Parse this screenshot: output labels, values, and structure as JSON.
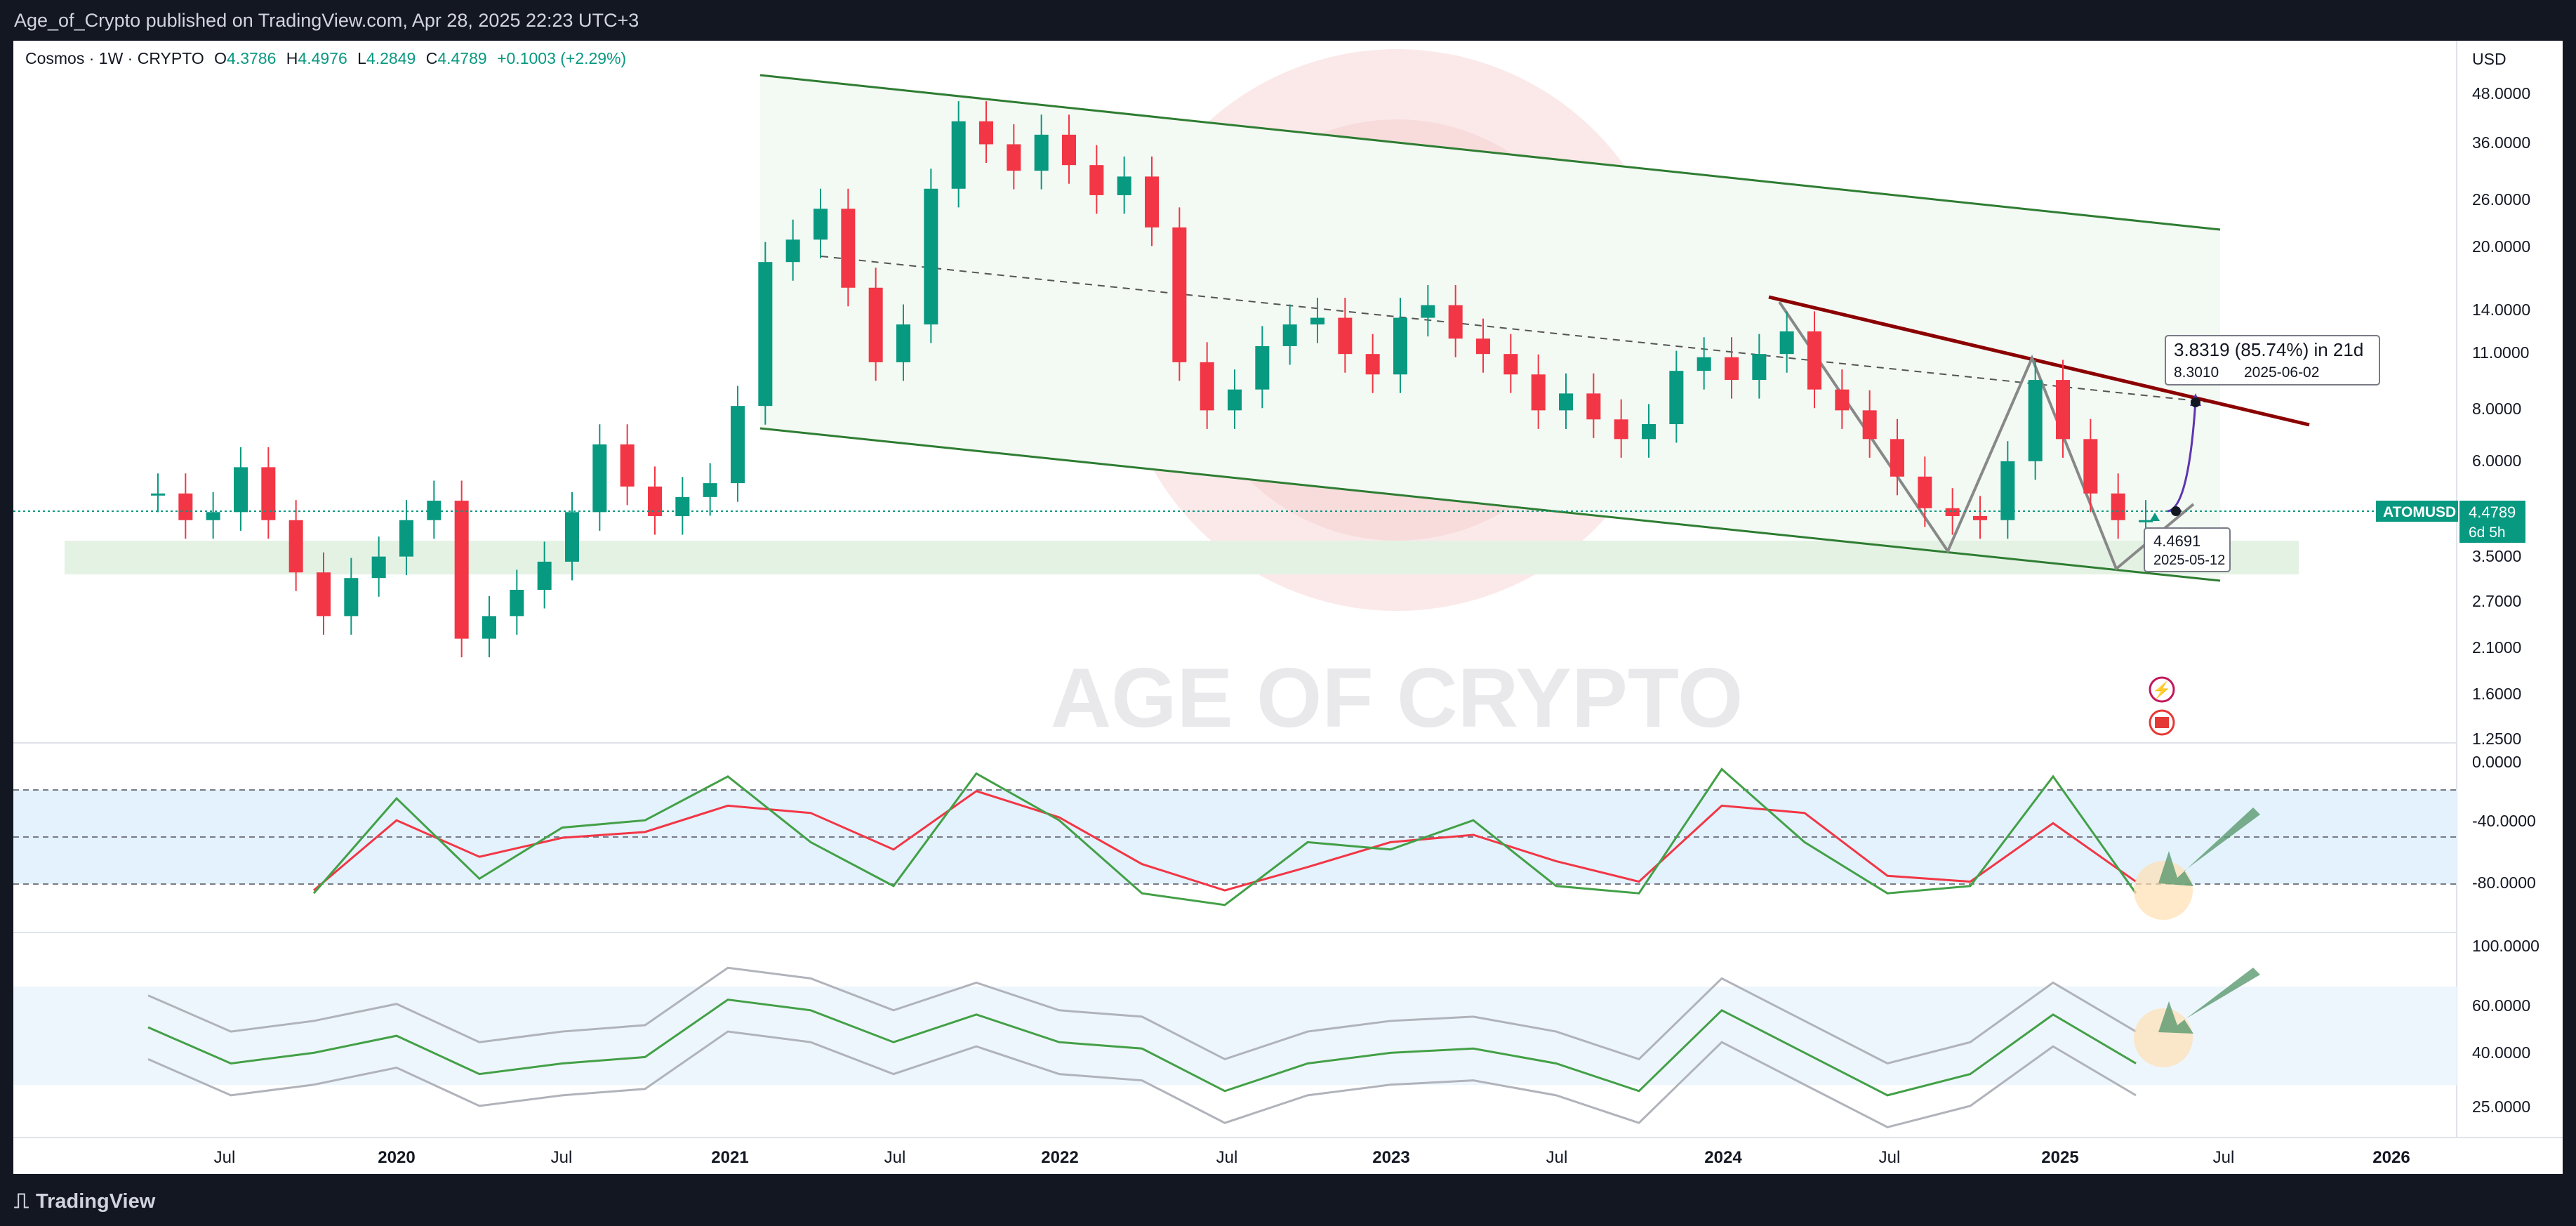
{
  "header": {
    "published": "Age_of_Crypto published on TradingView.com, Apr 28, 2025 22:23 UTC+3"
  },
  "footer": {
    "brand": "TradingView"
  },
  "watermark": "AGE OF CRYPTO",
  "legend": {
    "symbol": "Cosmos · 1W · CRYPTO",
    "open": "4.3786",
    "high": "4.4976",
    "low": "4.2849",
    "close": "4.4789",
    "change": "+0.1003 (+2.29%)"
  },
  "currency": "USD",
  "price_tag": {
    "ticker": "ATOMUSD",
    "price": "4.4789",
    "countdown": "6d 5h"
  },
  "annotations": {
    "target_box": {
      "line1": "3.8319 (85.74%) in 21d",
      "price": "8.3010",
      "date": "2025-06-02"
    },
    "start_box": {
      "price": "4.4691",
      "date": "2025-05-12"
    }
  },
  "colors": {
    "up": "#089981",
    "down": "#f23645",
    "channel": "#2e7d32",
    "resistance": "#8b0000",
    "rsi_signal": "#f23645",
    "rsi_line": "#43a047",
    "support_zone": "#c8e6c9"
  },
  "chart_data": [
    {
      "type": "line",
      "title": "Cosmos · 1W · CRYPTO",
      "price_scale": "log",
      "ylim": [
        1.2,
        55
      ],
      "y_ticks": [
        "48.0000",
        "36.0000",
        "26.0000",
        "20.0000",
        "14.0000",
        "11.0000",
        "8.0000",
        "6.0000",
        "3.5000",
        "2.7000",
        "2.1000",
        "1.6000",
        "1.2500"
      ],
      "x_ticks": [
        "Jul",
        "2020",
        "Jul",
        "2021",
        "Jul",
        "2022",
        "Jul",
        "2023",
        "Jul",
        "2024",
        "Jul",
        "2025",
        "Jul",
        "2026"
      ],
      "series": [
        {
          "x": [
            "2019-04",
            "2019-05",
            "2019-06",
            "2019-07",
            "2019-08",
            "2019-09",
            "2019-10",
            "2019-11",
            "2019-12",
            "2020-01",
            "2020-02",
            "2020-03",
            "2020-04",
            "2020-05",
            "2020-06",
            "2020-07",
            "2020-08",
            "2020-09",
            "2020-10",
            "2020-11",
            "2020-12",
            "2021-01",
            "2021-02",
            "2021-03",
            "2021-04",
            "2021-05",
            "2021-06",
            "2021-07",
            "2021-08",
            "2021-09",
            "2021-10",
            "2021-11",
            "2021-12",
            "2022-01",
            "2022-02",
            "2022-03",
            "2022-04",
            "2022-05",
            "2022-06",
            "2022-07",
            "2022-08",
            "2022-09",
            "2022-10",
            "2022-11",
            "2022-12",
            "2023-01",
            "2023-02",
            "2023-03",
            "2023-04",
            "2023-05",
            "2023-06",
            "2023-07",
            "2023-08",
            "2023-09",
            "2023-10",
            "2023-11",
            "2023-12",
            "2024-01",
            "2024-02",
            "2024-03",
            "2024-04",
            "2024-05",
            "2024-06",
            "2024-07",
            "2024-08",
            "2024-09",
            "2024-10",
            "2024-11",
            "2024-12",
            "2025-01",
            "2025-02",
            "2025-03",
            "2025-04"
          ],
          "values": [
            5.0,
            4.3,
            4.5,
            5.8,
            4.3,
            3.2,
            2.5,
            3.1,
            3.5,
            4.3,
            4.8,
            2.2,
            2.5,
            2.9,
            3.4,
            4.5,
            6.6,
            5.2,
            4.4,
            4.9,
            5.3,
            8.2,
            18.5,
            21.0,
            25.0,
            16.0,
            10.5,
            13.0,
            28.0,
            41.0,
            36.0,
            31.0,
            38.0,
            32.0,
            27.0,
            30.0,
            22.5,
            10.5,
            8.0,
            9.0,
            11.5,
            13.0,
            13.5,
            11.0,
            9.8,
            13.5,
            14.5,
            12.0,
            11.0,
            9.8,
            8.0,
            8.8,
            7.6,
            6.8,
            7.4,
            10.0,
            10.8,
            9.5,
            11.0,
            12.5,
            9.0,
            8.0,
            6.8,
            5.5,
            4.6,
            4.4,
            4.3,
            6.0,
            9.5,
            6.8,
            5.0,
            4.3,
            4.3
          ]
        }
      ]
    },
    {
      "type": "line",
      "ylim": [
        -100,
        0
      ],
      "y_ticks": [
        "0.0000",
        "-40.0000",
        "-80.0000"
      ],
      "bands": [
        -20,
        -50,
        -80
      ],
      "series": [
        {
          "x": [
            "2019-10",
            "2020-01",
            "2020-04",
            "2020-07",
            "2020-10",
            "2021-01",
            "2021-04",
            "2021-07",
            "2021-10",
            "2022-01",
            "2022-04",
            "2022-07",
            "2022-10",
            "2023-01",
            "2023-04",
            "2023-07",
            "2023-10",
            "2024-01",
            "2024-04",
            "2024-07",
            "2024-10",
            "2025-01",
            "2025-04"
          ],
          "values": [
            -88,
            -40,
            -65,
            -52,
            -48,
            -30,
            -35,
            -60,
            -20,
            -38,
            -70,
            -88,
            -72,
            -55,
            -50,
            -68,
            -82,
            -30,
            -35,
            -78,
            -82,
            -42,
            -82
          ]
        },
        {
          "x": [
            "2019-10",
            "2020-01",
            "2020-04",
            "2020-07",
            "2020-10",
            "2021-01",
            "2021-04",
            "2021-07",
            "2021-10",
            "2022-01",
            "2022-04",
            "2022-07",
            "2022-10",
            "2023-01",
            "2023-04",
            "2023-07",
            "2023-10",
            "2024-01",
            "2024-04",
            "2024-07",
            "2024-10",
            "2025-01",
            "2025-04"
          ],
          "values": [
            -90,
            -25,
            -80,
            -45,
            -40,
            -10,
            -55,
            -85,
            -8,
            -40,
            -90,
            -98,
            -55,
            -60,
            -40,
            -85,
            -90,
            -5,
            -55,
            -90,
            -85,
            -10,
            -90
          ]
        }
      ]
    },
    {
      "type": "line",
      "ylim": [
        20,
        100
      ],
      "y_ticks": [
        "100.0000",
        "60.0000",
        "40.0000",
        "25.0000"
      ],
      "series": [
        {
          "x": [
            "2019-04",
            "2019-07",
            "2019-10",
            "2020-01",
            "2020-04",
            "2020-07",
            "2020-10",
            "2021-01",
            "2021-04",
            "2021-07",
            "2021-10",
            "2022-01",
            "2022-04",
            "2022-07",
            "2022-10",
            "2023-01",
            "2023-04",
            "2023-07",
            "2023-10",
            "2024-01",
            "2024-04",
            "2024-07",
            "2024-10",
            "2025-01",
            "2025-04"
          ],
          "values": [
            62,
            45,
            50,
            58,
            40,
            45,
            48,
            75,
            70,
            55,
            68,
            55,
            52,
            32,
            45,
            50,
            52,
            45,
            32,
            70,
            50,
            30,
            40,
            68,
            45
          ]
        }
      ]
    }
  ]
}
